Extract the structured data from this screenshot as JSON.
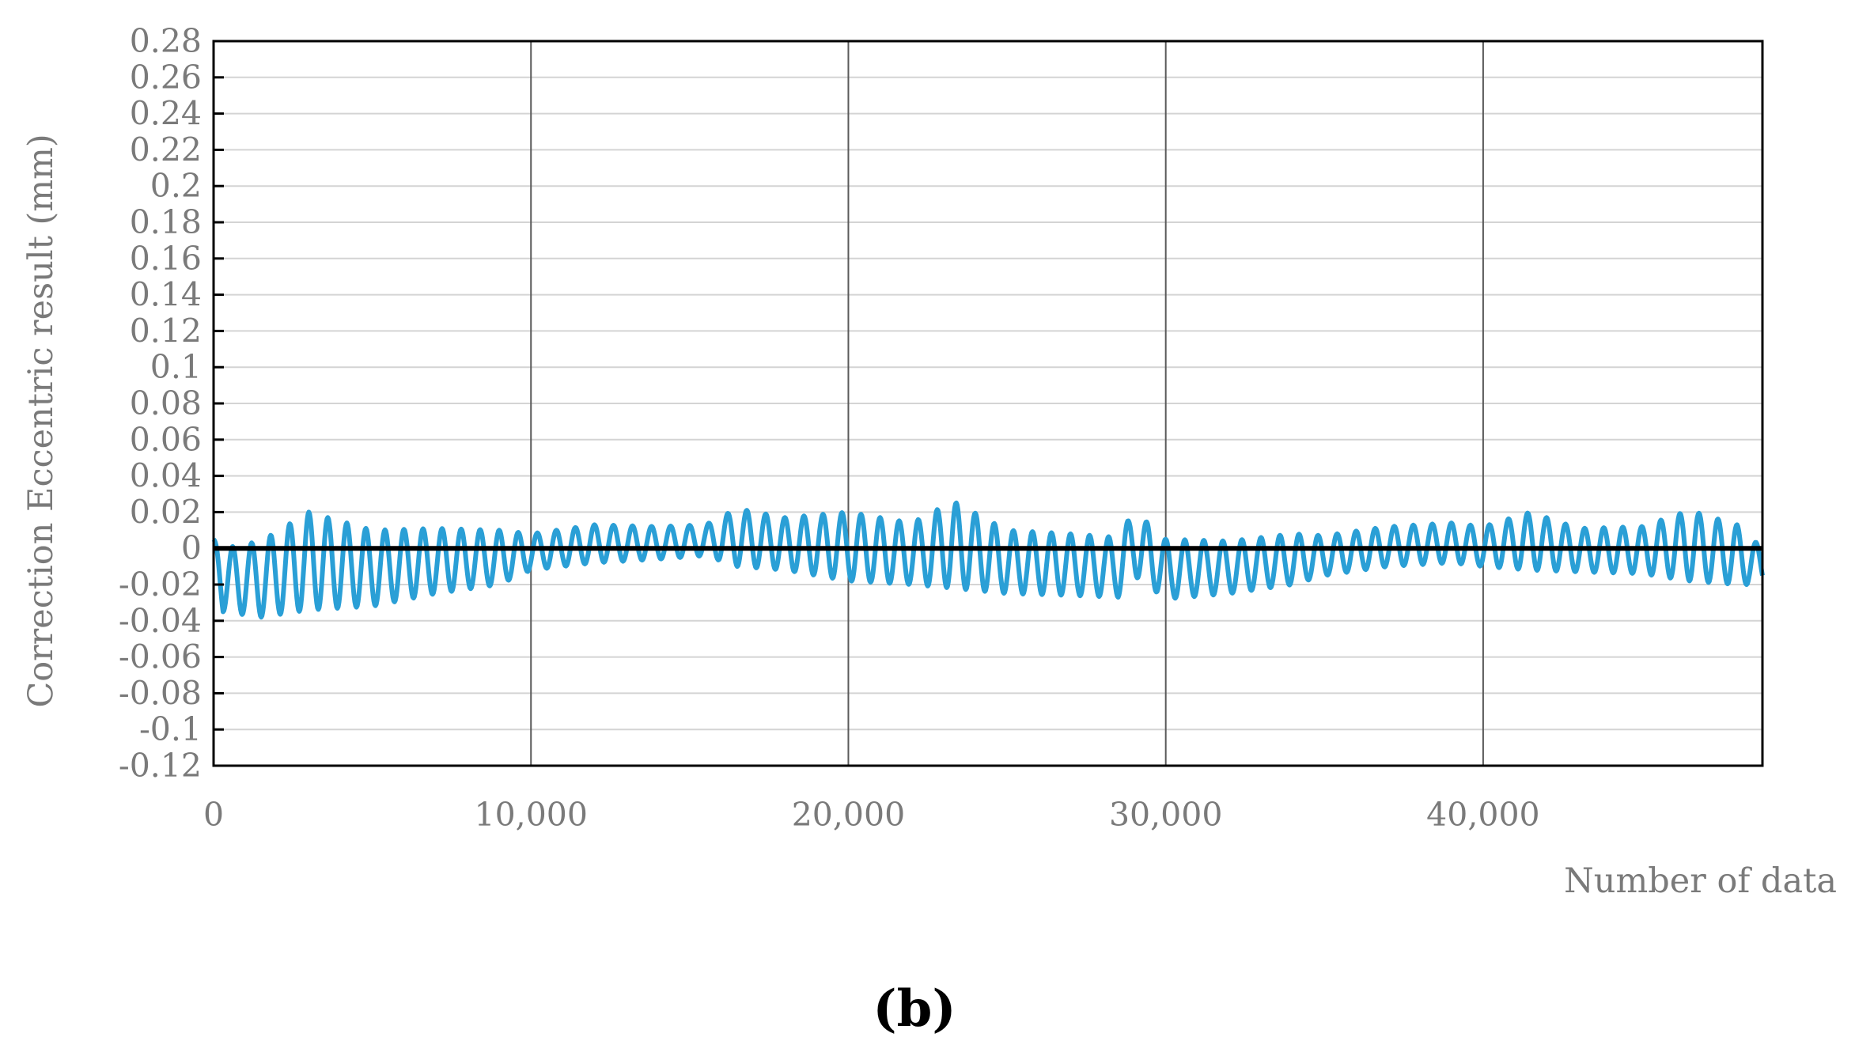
{
  "chart_data": {
    "type": "line",
    "title": "",
    "xlabel": "Number of data",
    "ylabel": "Correction Eccentric result (mm)",
    "panel_label": "(b)",
    "xlim": [
      0,
      48800
    ],
    "ylim": [
      -0.12,
      0.28
    ],
    "x_ticks": [
      0,
      10000,
      20000,
      30000,
      40000
    ],
    "x_tick_labels": [
      "0",
      "10,000",
      "20,000",
      "30,000",
      "40,000"
    ],
    "y_ticks": [
      0.28,
      0.26,
      0.24,
      0.22,
      0.2,
      0.18,
      0.16,
      0.14,
      0.12,
      0.1,
      0.08,
      0.06,
      0.04,
      0.02,
      0,
      -0.02,
      -0.04,
      -0.06,
      -0.08,
      -0.1,
      -0.12
    ],
    "y_tick_labels": [
      "0.28",
      "0.26",
      "0.24",
      "0.22",
      "0.2",
      "0.18",
      "0.16",
      "0.14",
      "0.12",
      "0.1",
      "0.08",
      "0.06",
      "0.04",
      "0.02",
      "0",
      "-0.02",
      "-0.04",
      "-0.06",
      "-0.08",
      "-0.1",
      "-0.12"
    ],
    "grid": {
      "horizontal": true,
      "vertical_major": true
    },
    "reference_line": {
      "y": 0,
      "color": "#000000"
    },
    "series": [
      {
        "color": "#2a9fd6",
        "cycle_length": 600,
        "envelope": {
          "x": [
            0,
            300,
            1500,
            3000,
            5000,
            7000,
            9000,
            10000,
            12000,
            14000,
            15500,
            16500,
            18000,
            20000,
            22000,
            23300,
            25000,
            27000,
            28500,
            29000,
            30000,
            32000,
            34000,
            35000,
            37000,
            39000,
            40000,
            41500,
            43000,
            45000,
            46500,
            48000,
            48800
          ],
          "max": [
            0.005,
            0.0,
            0.004,
            0.02,
            0.01,
            0.011,
            0.01,
            0.008,
            0.013,
            0.012,
            0.013,
            0.022,
            0.017,
            0.02,
            0.014,
            0.026,
            0.01,
            0.008,
            0.006,
            0.021,
            0.005,
            0.004,
            0.008,
            0.007,
            0.012,
            0.014,
            0.012,
            0.02,
            0.011,
            0.012,
            0.021,
            0.013,
            0.0
          ],
          "min": [
            0.0,
            -0.035,
            -0.038,
            -0.034,
            -0.032,
            -0.025,
            -0.02,
            -0.012,
            -0.008,
            -0.006,
            -0.004,
            -0.01,
            -0.012,
            -0.018,
            -0.02,
            -0.022,
            -0.025,
            -0.026,
            -0.027,
            -0.015,
            -0.028,
            -0.025,
            -0.02,
            -0.015,
            -0.01,
            -0.008,
            -0.01,
            -0.012,
            -0.013,
            -0.014,
            -0.018,
            -0.02,
            -0.02
          ]
        }
      }
    ]
  }
}
